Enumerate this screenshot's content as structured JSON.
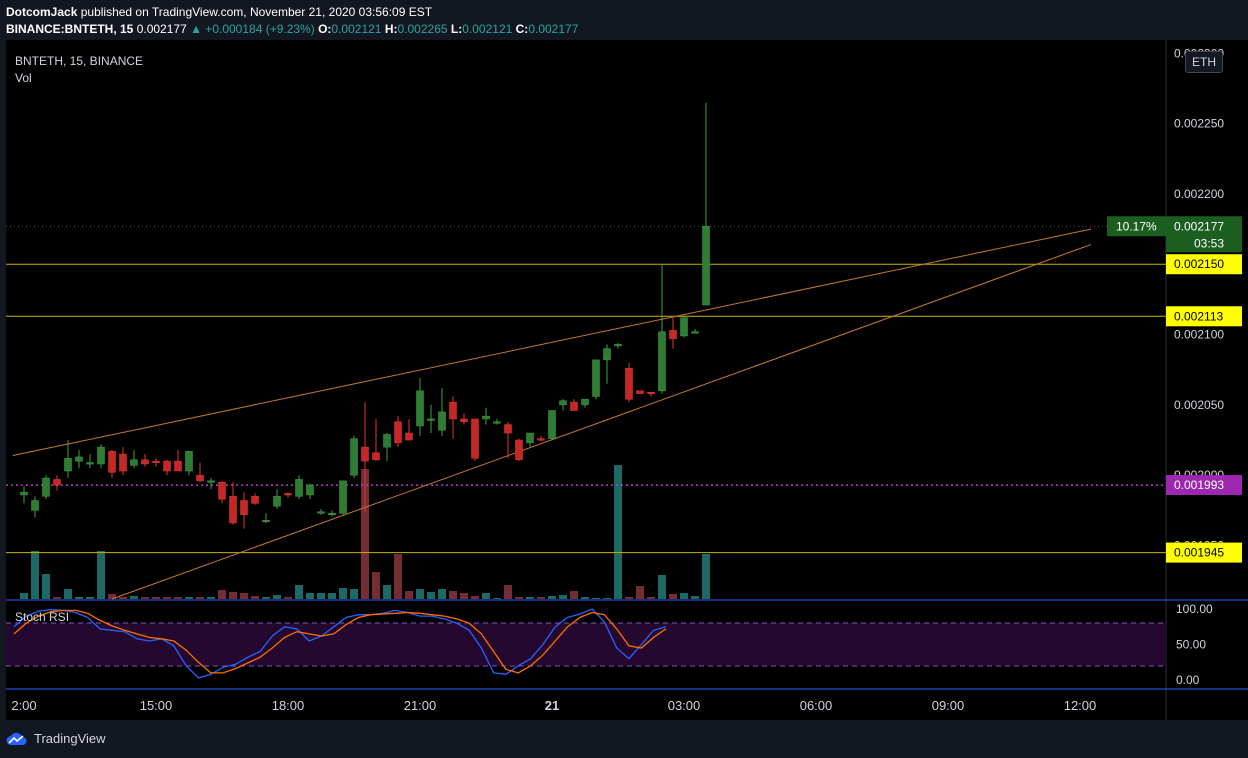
{
  "header": {
    "publisher": "DotcomJack",
    "published_text": "published on TradingView.com, November 21, 2020 03:56:09 EST",
    "symbol_full": "BINANCE:BNTETH, 15",
    "last": "0.002177",
    "change_text": "▲ +0.000184 (+9.23%)",
    "o_label": "O:",
    "o": "0.002121",
    "h_label": "H:",
    "h": "0.002265",
    "l_label": "L:",
    "l": "0.002121",
    "c_label": "C:",
    "c": "0.002177"
  },
  "legend": {
    "symbol": "BNTETH, 15, BINANCE",
    "vol": "Vol",
    "stoch": "Stoch RSI"
  },
  "currency_button": "ETH",
  "footer": {
    "brand": "TradingView"
  },
  "colors": {
    "bg": "#131722",
    "up": "#26a69a",
    "down": "#ef5350",
    "up_candle": "#2e7d32",
    "down_candle": "#c62828",
    "hline": "#c8b400",
    "trend": "#c77a2a",
    "magenta": "#ab47bc",
    "k_line": "#2962ff",
    "d_line": "#ff6d00",
    "rsi_band": "#2a0d3a"
  },
  "chart_data": [
    {
      "type": "candlestick",
      "title": "BNTETH, 15, BINANCE",
      "y_axis": {
        "range": [
          0.001912,
          0.002308
        ],
        "ticks": [
          "0.002300",
          "0.002250",
          "0.002200",
          "0.002100",
          "0.002050",
          "0.002000",
          "0.001950"
        ]
      },
      "x_axis": {
        "ticks": [
          {
            "label": "2:00",
            "bar": -1
          },
          {
            "label": "15:00",
            "bar": 11
          },
          {
            "label": "18:00",
            "bar": 23
          },
          {
            "label": "21:00",
            "bar": 35
          },
          {
            "label": "21",
            "bar": 47
          },
          {
            "label": "03:00",
            "bar": 59
          },
          {
            "label": "06:00",
            "bar": 71
          },
          {
            "label": "09:00",
            "bar": 83
          },
          {
            "label": "12:00",
            "bar": 95
          }
        ]
      },
      "candles": [
        {
          "o": 0.001986,
          "h": 0.001992,
          "l": 0.00198,
          "c": 0.001988
        },
        {
          "o": 0.001975,
          "h": 0.001985,
          "l": 0.00197,
          "c": 0.001982
        },
        {
          "o": 0.001985,
          "h": 0.002,
          "l": 0.001983,
          "c": 0.001998
        },
        {
          "o": 0.001997,
          "h": 0.002,
          "l": 0.001989,
          "c": 0.001993
        },
        {
          "o": 0.002003,
          "h": 0.002025,
          "l": 0.001998,
          "c": 0.002012
        },
        {
          "o": 0.00201,
          "h": 0.002018,
          "l": 0.002005,
          "c": 0.002013
        },
        {
          "o": 0.002009,
          "h": 0.002015,
          "l": 0.002005,
          "c": 0.002009
        },
        {
          "o": 0.002008,
          "h": 0.002022,
          "l": 0.002005,
          "c": 0.00202
        },
        {
          "o": 0.002017,
          "h": 0.002018,
          "l": 0.001998,
          "c": 0.002002
        },
        {
          "o": 0.002015,
          "h": 0.00202,
          "l": 0.002,
          "c": 0.002003
        },
        {
          "o": 0.002007,
          "h": 0.002018,
          "l": 0.002005,
          "c": 0.002011
        },
        {
          "o": 0.002011,
          "h": 0.002015,
          "l": 0.002006,
          "c": 0.002008
        },
        {
          "o": 0.00201,
          "h": 0.002012,
          "l": 0.002006,
          "c": 0.002009
        },
        {
          "o": 0.00201,
          "h": 0.002011,
          "l": 0.002,
          "c": 0.002003
        },
        {
          "o": 0.00201,
          "h": 0.002018,
          "l": 0.002003,
          "c": 0.002003
        },
        {
          "o": 0.002003,
          "h": 0.002016,
          "l": 0.002,
          "c": 0.002017
        },
        {
          "o": 0.002,
          "h": 0.002009,
          "l": 0.001995,
          "c": 0.001996
        },
        {
          "o": 0.001996,
          "h": 0.001998,
          "l": 0.00199,
          "c": 0.001996
        },
        {
          "o": 0.001995,
          "h": 0.001996,
          "l": 0.00198,
          "c": 0.001983
        },
        {
          "o": 0.001985,
          "h": 0.001995,
          "l": 0.001965,
          "c": 0.001966
        },
        {
          "o": 0.001982,
          "h": 0.001988,
          "l": 0.001962,
          "c": 0.001972
        },
        {
          "o": 0.001985,
          "h": 0.001987,
          "l": 0.001979,
          "c": 0.00198
        },
        {
          "o": 0.001968,
          "h": 0.001973,
          "l": 0.001966,
          "c": 0.001968
        },
        {
          "o": 0.001978,
          "h": 0.00199,
          "l": 0.001976,
          "c": 0.001985
        },
        {
          "o": 0.001987,
          "h": 0.001988,
          "l": 0.001984,
          "c": 0.001986
        },
        {
          "o": 0.001985,
          "h": 0.002,
          "l": 0.001983,
          "c": 0.001997
        },
        {
          "o": 0.001986,
          "h": 0.001994,
          "l": 0.001983,
          "c": 0.001993
        },
        {
          "o": 0.001974,
          "h": 0.001976,
          "l": 0.001972,
          "c": 0.001974
        },
        {
          "o": 0.001972,
          "h": 0.001975,
          "l": 0.001971,
          "c": 0.001973
        },
        {
          "o": 0.001973,
          "h": 0.001996,
          "l": 0.001972,
          "c": 0.001996
        },
        {
          "o": 0.002,
          "h": 0.002028,
          "l": 0.001998,
          "c": 0.002026
        },
        {
          "o": 0.00202,
          "h": 0.002052,
          "l": 0.001974,
          "c": 0.00201
        },
        {
          "o": 0.002016,
          "h": 0.00204,
          "l": 0.00201,
          "c": 0.002011
        },
        {
          "o": 0.00202,
          "h": 0.00203,
          "l": 0.00201,
          "c": 0.002029
        },
        {
          "o": 0.002038,
          "h": 0.002042,
          "l": 0.00202,
          "c": 0.002023
        },
        {
          "o": 0.00203,
          "h": 0.00204,
          "l": 0.002025,
          "c": 0.002025
        },
        {
          "o": 0.002035,
          "h": 0.002069,
          "l": 0.002028,
          "c": 0.00206
        },
        {
          "o": 0.00204,
          "h": 0.00205,
          "l": 0.00203,
          "c": 0.00204
        },
        {
          "o": 0.002032,
          "h": 0.002062,
          "l": 0.002028,
          "c": 0.002045
        },
        {
          "o": 0.002052,
          "h": 0.002056,
          "l": 0.002026,
          "c": 0.00204
        },
        {
          "o": 0.00204,
          "h": 0.002044,
          "l": 0.002036,
          "c": 0.002038
        },
        {
          "o": 0.00204,
          "h": 0.00204,
          "l": 0.00201,
          "c": 0.002012
        },
        {
          "o": 0.00204,
          "h": 0.002048,
          "l": 0.002036,
          "c": 0.002042
        },
        {
          "o": 0.002038,
          "h": 0.00204,
          "l": 0.002036,
          "c": 0.002038
        },
        {
          "o": 0.002036,
          "h": 0.002038,
          "l": 0.002012,
          "c": 0.00203
        },
        {
          "o": 0.002025,
          "h": 0.002026,
          "l": 0.00201,
          "c": 0.002011
        },
        {
          "o": 0.002023,
          "h": 0.00203,
          "l": 0.00202,
          "c": 0.00203
        },
        {
          "o": 0.002026,
          "h": 0.002028,
          "l": 0.002024,
          "c": 0.002025
        },
        {
          "o": 0.002026,
          "h": 0.002046,
          "l": 0.002025,
          "c": 0.002046
        },
        {
          "o": 0.00205,
          "h": 0.002054,
          "l": 0.002046,
          "c": 0.002053
        },
        {
          "o": 0.002052,
          "h": 0.002054,
          "l": 0.002046,
          "c": 0.002046
        },
        {
          "o": 0.00205,
          "h": 0.002053,
          "l": 0.002048,
          "c": 0.002054
        },
        {
          "o": 0.002056,
          "h": 0.002082,
          "l": 0.002054,
          "c": 0.002082
        },
        {
          "o": 0.002082,
          "h": 0.002093,
          "l": 0.002065,
          "c": 0.00209
        },
        {
          "o": 0.002092,
          "h": 0.002094,
          "l": 0.00209,
          "c": 0.002093
        },
        {
          "o": 0.002076,
          "h": 0.00208,
          "l": 0.002052,
          "c": 0.002054
        },
        {
          "o": 0.00206,
          "h": 0.00206,
          "l": 0.002058,
          "c": 0.002058
        },
        {
          "o": 0.002059,
          "h": 0.002059,
          "l": 0.002056,
          "c": 0.002058
        },
        {
          "o": 0.00206,
          "h": 0.00215,
          "l": 0.002058,
          "c": 0.002102
        },
        {
          "o": 0.002103,
          "h": 0.002113,
          "l": 0.00209,
          "c": 0.002097
        },
        {
          "o": 0.002099,
          "h": 0.002113,
          "l": 0.002098,
          "c": 0.002112
        },
        {
          "o": 0.002102,
          "h": 0.002104,
          "l": 0.002101,
          "c": 0.002102
        },
        {
          "o": 0.002121,
          "h": 0.002265,
          "l": 0.002121,
          "c": 0.002177
        }
      ],
      "volume": {
        "values": [
          6,
          48,
          25,
          2,
          10,
          2,
          2,
          48,
          5,
          2,
          3,
          2,
          2,
          2,
          2,
          2,
          2,
          2,
          9,
          7,
          6,
          3,
          2,
          4,
          2,
          14,
          6,
          6,
          6,
          11,
          10,
          130,
          27,
          14,
          45,
          8,
          10,
          7,
          10,
          8,
          6,
          3,
          6,
          1,
          14,
          2,
          2,
          2,
          3,
          4,
          8,
          2,
          1,
          1,
          134,
          2,
          13,
          2,
          24,
          5,
          6,
          3,
          45
        ],
        "colors_by_direction": true
      },
      "horizontal_levels": [
        {
          "value": 0.00215,
          "label": "0.002150",
          "color": "#c8b400"
        },
        {
          "value": 0.002113,
          "label": "0.002113",
          "color": "#c8b400"
        },
        {
          "value": 0.001993,
          "label": "0.001993",
          "color": "#ab47bc",
          "dotted": true
        },
        {
          "value": 0.001945,
          "label": "0.001945",
          "color": "#c8b400"
        }
      ],
      "last_price": {
        "value": 0.002177,
        "label": "0.002177",
        "pct": "10.17%",
        "countdown": "03:53"
      },
      "trendlines": [
        {
          "from": {
            "bar": -1,
            "value": 0.002014
          },
          "to": {
            "bar": 97,
            "value": 0.002175
          }
        },
        {
          "from": {
            "bar": 8,
            "value": 0.001912
          },
          "to": {
            "bar": 97,
            "value": 0.002164
          }
        }
      ]
    },
    {
      "type": "line",
      "title": "Stoch RSI",
      "y_axis": {
        "range": [
          0,
          100
        ],
        "ticks": [
          "100.00",
          "50.00",
          "0.00"
        ],
        "bands": [
          20,
          80
        ]
      },
      "series": [
        {
          "name": "K",
          "color": "#2962ff",
          "values": [
            75,
            90,
            97,
            99,
            98,
            95,
            88,
            72,
            70,
            68,
            58,
            55,
            58,
            48,
            20,
            3,
            8,
            18,
            22,
            32,
            40,
            62,
            75,
            72,
            55,
            62,
            75,
            88,
            92,
            92,
            94,
            98,
            95,
            90,
            90,
            86,
            80,
            70,
            45,
            10,
            8,
            20,
            30,
            50,
            75,
            88,
            93,
            100,
            82,
            45,
            30,
            50,
            70,
            75
          ]
        },
        {
          "name": "D",
          "color": "#ff6d00",
          "values": [
            65,
            80,
            90,
            96,
            98,
            98,
            94,
            84,
            76,
            70,
            65,
            60,
            58,
            55,
            42,
            25,
            10,
            10,
            16,
            24,
            32,
            45,
            60,
            68,
            65,
            62,
            65,
            78,
            88,
            92,
            93,
            94,
            95,
            94,
            92,
            90,
            86,
            80,
            65,
            40,
            15,
            10,
            20,
            35,
            55,
            75,
            88,
            95,
            92,
            72,
            48,
            45,
            60,
            72
          ]
        }
      ]
    }
  ]
}
